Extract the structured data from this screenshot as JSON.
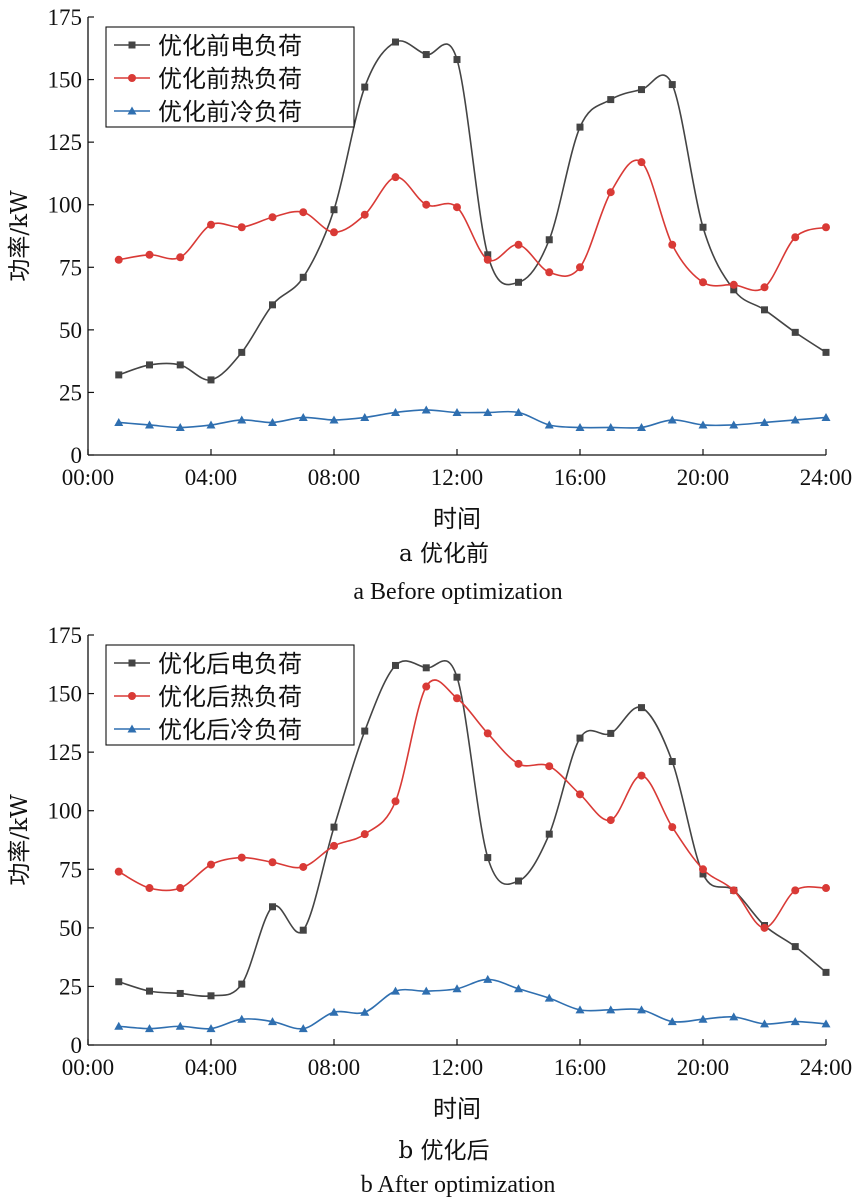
{
  "chart_data": [
    {
      "type": "line",
      "caption_cn": "a 优化前",
      "caption_en": "a Before optimization",
      "xlabel": "时间",
      "ylabel": "功率/kW",
      "ylim": [
        0,
        175
      ],
      "yticks": [
        "0",
        "25",
        "50",
        "75",
        "100",
        "125",
        "150",
        "175"
      ],
      "xlim": [
        0,
        24
      ],
      "xticks": [
        "00:00",
        "04:00",
        "08:00",
        "12:00",
        "16:00",
        "20:00",
        "24:00"
      ],
      "legend_position": "top-left",
      "x": [
        "01:00",
        "02:00",
        "03:00",
        "04:00",
        "05:00",
        "06:00",
        "07:00",
        "08:00",
        "09:00",
        "10:00",
        "11:00",
        "12:00",
        "13:00",
        "14:00",
        "15:00",
        "16:00",
        "17:00",
        "18:00",
        "19:00",
        "20:00",
        "21:00",
        "22:00",
        "23:00",
        "24:00"
      ],
      "series": [
        {
          "name": "优化前电负荷",
          "color": "#444444",
          "marker": "square",
          "values": [
            32,
            36,
            36,
            30,
            41,
            60,
            71,
            98,
            147,
            165,
            160,
            158,
            80,
            69,
            86,
            131,
            142,
            146,
            148,
            91,
            66,
            58,
            49,
            41
          ]
        },
        {
          "name": "优化前热负荷",
          "color": "#d93a36",
          "marker": "circle",
          "values": [
            78,
            80,
            79,
            92,
            91,
            95,
            97,
            89,
            96,
            111,
            100,
            99,
            78,
            84,
            73,
            75,
            105,
            117,
            84,
            69,
            68,
            67,
            87,
            91
          ]
        },
        {
          "name": "优化前冷负荷",
          "color": "#2f6fb0",
          "marker": "triangle",
          "values": [
            13,
            12,
            11,
            12,
            14,
            13,
            15,
            14,
            15,
            17,
            18,
            17,
            17,
            17,
            12,
            11,
            11,
            11,
            14,
            12,
            12,
            13,
            14,
            15
          ]
        }
      ]
    },
    {
      "type": "line",
      "caption_cn": "b 优化后",
      "caption_en": "b After optimization",
      "xlabel": "时间",
      "ylabel": "功率/kW",
      "ylim": [
        0,
        175
      ],
      "yticks": [
        "0",
        "25",
        "50",
        "75",
        "100",
        "125",
        "150",
        "175"
      ],
      "xlim": [
        0,
        24
      ],
      "xticks": [
        "00:00",
        "04:00",
        "08:00",
        "12:00",
        "16:00",
        "20:00",
        "24:00"
      ],
      "legend_position": "top-left",
      "x": [
        "01:00",
        "02:00",
        "03:00",
        "04:00",
        "05:00",
        "06:00",
        "07:00",
        "08:00",
        "09:00",
        "10:00",
        "11:00",
        "12:00",
        "13:00",
        "14:00",
        "15:00",
        "16:00",
        "17:00",
        "18:00",
        "19:00",
        "20:00",
        "21:00",
        "22:00",
        "23:00",
        "24:00"
      ],
      "series": [
        {
          "name": "优化后电负荷",
          "color": "#444444",
          "marker": "square",
          "values": [
            27,
            23,
            22,
            21,
            26,
            59,
            49,
            93,
            134,
            162,
            161,
            157,
            80,
            70,
            90,
            131,
            133,
            144,
            121,
            73,
            66,
            51,
            42,
            31
          ]
        },
        {
          "name": "优化后热负荷",
          "color": "#d93a36",
          "marker": "circle",
          "values": [
            74,
            67,
            67,
            77,
            80,
            78,
            76,
            85,
            90,
            104,
            153,
            148,
            133,
            120,
            119,
            107,
            96,
            115,
            93,
            75,
            66,
            50,
            66,
            67
          ]
        },
        {
          "name": "优化后冷负荷",
          "color": "#2f6fb0",
          "marker": "triangle",
          "values": [
            8,
            7,
            8,
            7,
            11,
            10,
            7,
            14,
            14,
            23,
            23,
            24,
            28,
            24,
            20,
            15,
            15,
            15,
            10,
            11,
            12,
            9,
            10,
            9
          ]
        }
      ]
    }
  ]
}
